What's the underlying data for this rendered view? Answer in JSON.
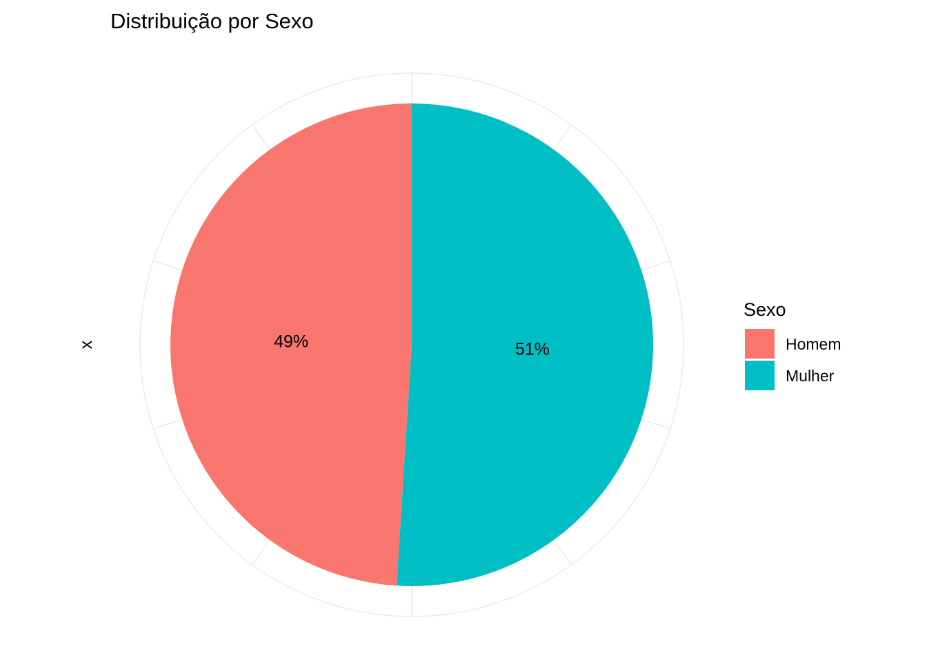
{
  "chart_data": {
    "type": "pie",
    "title": "Distribuição por Sexo",
    "ylabel": "x",
    "legend_title": "Sexo",
    "legend_position": "right",
    "grid": true,
    "slices": [
      {
        "label": "Mulher",
        "value": 51,
        "display": "51%",
        "color": "#00BFC4"
      },
      {
        "label": "Homem",
        "value": 49,
        "display": "49%",
        "color": "#F8766D"
      }
    ],
    "legend": [
      {
        "label": "Homem",
        "color": "#F8766D"
      },
      {
        "label": "Mulher",
        "color": "#00BFC4"
      }
    ]
  }
}
